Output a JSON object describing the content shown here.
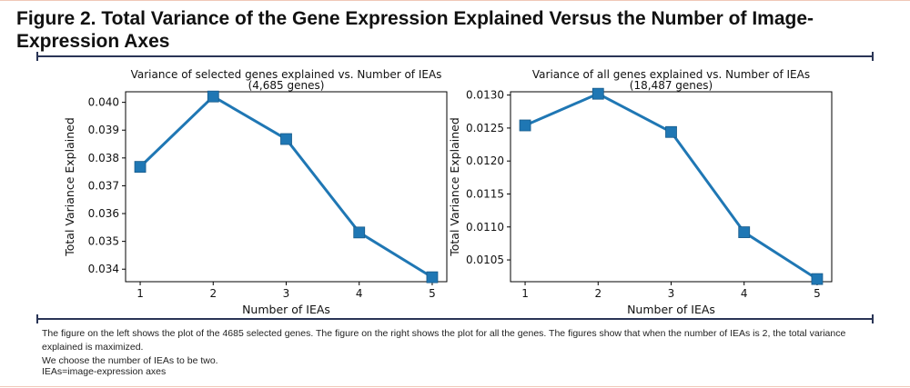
{
  "figure": {
    "title_line1": "Figure 2. Total Variance of the Gene Expression Explained Versus the Number of Image-",
    "title_line2": "Expression Axes",
    "caption_line1": "The figure on the left shows the plot of the 4685 selected genes. The figure on the right shows the plot for all the genes. The figures show that when the number of IEAs is 2, the total variance explained is maximized.",
    "caption_line2": "We choose the number of IEAs to be two.",
    "abbreviation": "IEAs=image-expression axes"
  },
  "chart_data": [
    {
      "type": "line",
      "title": "Variance  of selected genes explained vs. Number of IEAs",
      "subtitle": "(4,685 genes)",
      "xlabel": "Number of IEAs",
      "ylabel": "Total Variance Explained",
      "x": [
        1,
        2,
        3,
        4,
        5
      ],
      "y": [
        0.03768,
        0.04021,
        0.03868,
        0.03532,
        0.03371
      ],
      "xlim": [
        0.8,
        5.2
      ],
      "ylim": [
        0.03355,
        0.04038
      ],
      "xticks": [
        "1",
        "2",
        "3",
        "4",
        "5"
      ],
      "yticks": [
        0.034,
        0.035,
        0.036,
        0.037,
        0.038,
        0.039,
        0.04
      ],
      "ytick_labels": [
        "0.034",
        "0.035",
        "0.036",
        "0.037",
        "0.038",
        "0.039",
        "0.040"
      ],
      "marker": "square",
      "color": "#1f77b4",
      "grid": false
    },
    {
      "type": "line",
      "title": "Variance of all genes explained vs. Number of IEAs",
      "subtitle": "(18,487 genes)",
      "xlabel": "Number of IEAs",
      "ylabel": "Total Variance Explained",
      "x": [
        1,
        2,
        3,
        4,
        5
      ],
      "y": [
        0.01254,
        0.01302,
        0.01244,
        0.01092,
        0.01021
      ],
      "xlim": [
        0.8,
        5.2
      ],
      "ylim": [
        0.01017,
        0.01305
      ],
      "xticks": [
        "1",
        "2",
        "3",
        "4",
        "5"
      ],
      "yticks": [
        0.0105,
        0.011,
        0.0115,
        0.012,
        0.0125,
        0.013
      ],
      "ytick_labels": [
        "0.0105",
        "0.0110",
        "0.0115",
        "0.0120",
        "0.0125",
        "0.0130"
      ],
      "marker": "square",
      "color": "#1f77b4",
      "grid": false
    }
  ]
}
